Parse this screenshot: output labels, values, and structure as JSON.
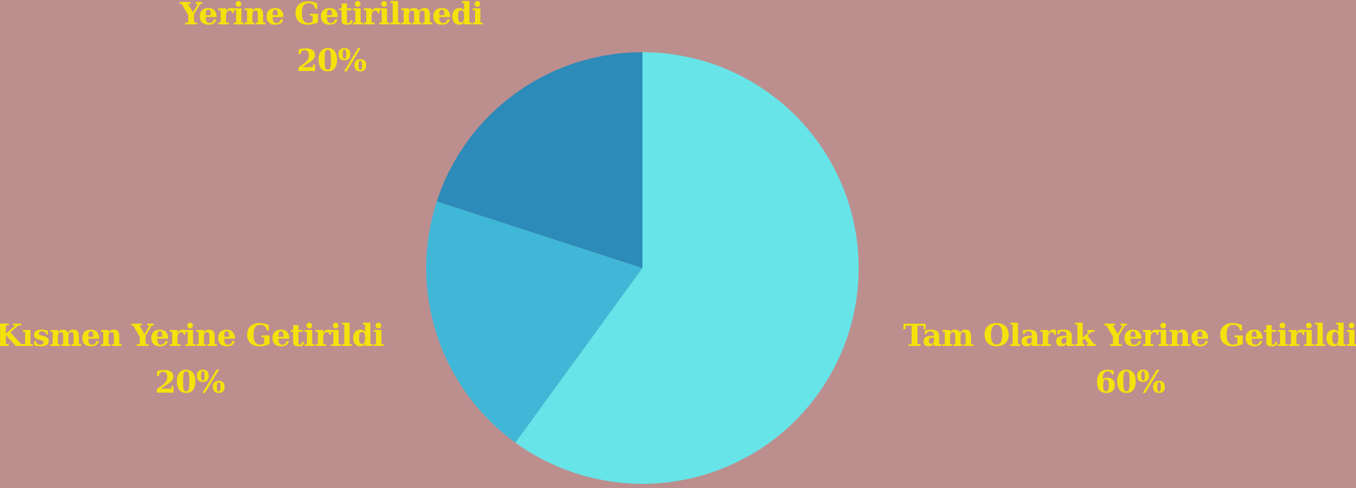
{
  "colors": {
    "background": "#BD8E8E",
    "label": "#F5E10C"
  },
  "chart_data": {
    "type": "pie",
    "title": "",
    "start_angle_deg": 0,
    "direction": "clockwise",
    "legend": "none",
    "slices": [
      {
        "label": "Tam Olarak Yerine Getirildi",
        "value": 60,
        "value_label": "60%",
        "color": "#67E4E8"
      },
      {
        "label": "Kısmen Yerine Getirildi",
        "value": 20,
        "value_label": "20%",
        "color": "#40B7D6"
      },
      {
        "label": "Yerine Getirilmedi",
        "value": 20,
        "value_label": "20%",
        "color": "#2C8BB8"
      }
    ]
  }
}
